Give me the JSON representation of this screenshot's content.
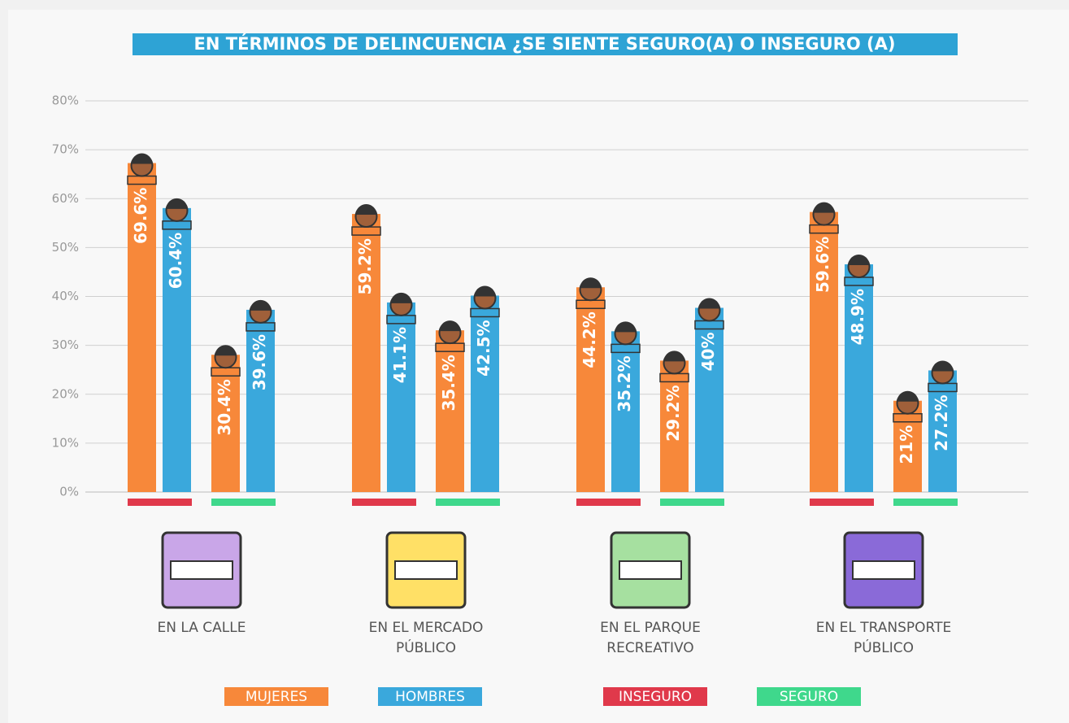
{
  "chart_data": {
    "type": "grouped-bar",
    "title": "EN TÉRMINOS DE DELINCUENCIA ¿SE SIENTE SEGURO(A) O INSEGURO (A)",
    "categories": [
      "EN LA CALLE",
      "EN EL MERCADO PÚBLICO",
      "EN EL PARQUE RECREATIVO",
      "EN EL TRANSPORTE PÚBLICO"
    ],
    "groups": [
      {
        "name": "INSEGURO",
        "color": "#e0394b"
      },
      {
        "name": "SEGURO",
        "color": "#3fd88c"
      }
    ],
    "series": [
      {
        "name": "MUJERES",
        "color": "#f7883a",
        "values": [
          [
            69.6,
            30.4
          ],
          [
            59.2,
            35.4
          ],
          [
            44.2,
            29.2
          ],
          [
            59.6,
            21
          ]
        ],
        "value_labels": [
          [
            "69.6%",
            "30.4%"
          ],
          [
            "59.2%",
            "35.4%"
          ],
          [
            "44.2%",
            "29.2%"
          ],
          [
            "59.6%",
            "21%"
          ]
        ]
      },
      {
        "name": "HOMBRES",
        "color": "#3aa8dc",
        "values": [
          [
            60.4,
            39.6
          ],
          [
            41.1,
            42.5
          ],
          [
            35.2,
            40
          ],
          [
            48.9,
            27.2
          ]
        ],
        "value_labels": [
          [
            "60.4%",
            "39.6%"
          ],
          [
            "41.1%",
            "42.5%"
          ],
          [
            "35.2%",
            "40%"
          ],
          [
            "48.9%",
            "27.2%"
          ]
        ]
      }
    ],
    "ylim": [
      0,
      80
    ],
    "yticks": [
      {
        "value": 0,
        "label": "0%"
      },
      {
        "value": 10,
        "label": "10%"
      },
      {
        "value": 20,
        "label": "20%"
      },
      {
        "value": 30,
        "label": "30%"
      },
      {
        "value": 40,
        "label": "40%"
      },
      {
        "value": 50,
        "label": "50%"
      },
      {
        "value": 60,
        "label": "60%"
      },
      {
        "value": 70,
        "label": "70%"
      },
      {
        "value": 80,
        "label": "80%"
      }
    ],
    "grid": true
  }
}
